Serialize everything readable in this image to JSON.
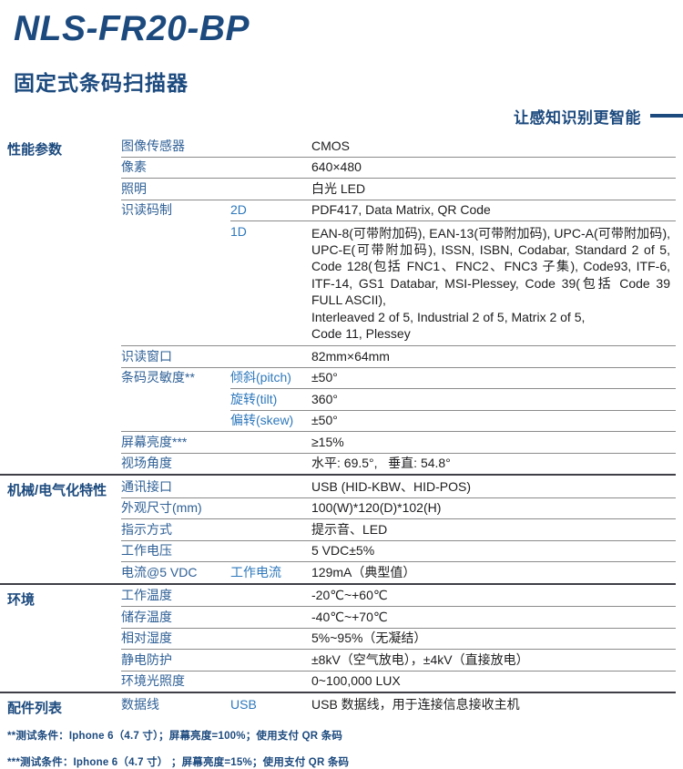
{
  "page": {
    "title": "NLS-FR20-BP",
    "subtitle": "固定式条码扫描器",
    "tagline": "让感知识别更智能"
  },
  "colors": {
    "navy": "#1c4a7e",
    "prop_blue": "#2f6096",
    "sub_blue": "#2e78bc",
    "ink": "#1d1d1f"
  },
  "table": {
    "sections": [
      {
        "label": "性能参数",
        "bordered": false,
        "rows": [
          {
            "prop": "图像传感器",
            "sub": "",
            "value": "CMOS",
            "divider": "none"
          },
          {
            "prop": "像素",
            "sub": "",
            "value": "640×480",
            "divider": "col2"
          },
          {
            "prop": "照明",
            "sub": "",
            "value": "白光 LED",
            "divider": "col2"
          },
          {
            "prop": "识读码制",
            "sub": "2D",
            "value": "PDF417, Data Matrix, QR Code",
            "divider": "col2"
          },
          {
            "prop": "",
            "sub": "1D",
            "value": "EAN-8(可带附加码), EAN-13(可带附加码), UPC-A(可带附加码), UPC-E(可带附加码), ISSN, ISBN, Codabar, Standard 2 of 5, Code 128(包括 FNC1、FNC2、FNC3 子集), Code93, ITF-6, ITF-14, GS1 Databar, MSI-Plessey, Code 39(包括 Code 39 FULL ASCII),\nInterleaved 2 of 5, Industrial 2 of 5, Matrix 2 of 5,\nCode 11, Plessey",
            "divider": "col3",
            "tall": true
          },
          {
            "prop": "识读窗口",
            "sub": "",
            "value": "82mm×64mm",
            "divider": "col2"
          },
          {
            "prop": "条码灵敏度**",
            "sub": "倾斜(pitch)",
            "value": "±50°",
            "divider": "col2"
          },
          {
            "prop": "",
            "sub": "旋转(tilt)",
            "value": "360°",
            "divider": "col3"
          },
          {
            "prop": "",
            "sub": "偏转(skew)",
            "value": "±50°",
            "divider": "col3"
          },
          {
            "prop": "屏幕亮度***",
            "sub": "",
            "value": "≥15%",
            "divider": "col2"
          },
          {
            "prop": "视场角度",
            "sub": "",
            "value": "水平: 69.5°,   垂直: 54.8°",
            "divider": "col2"
          }
        ]
      },
      {
        "label": "机械/电气化特性",
        "bordered": true,
        "rows": [
          {
            "prop": "通讯接口",
            "sub": "",
            "value": "USB (HID-KBW、HID-POS)",
            "divider": "none"
          },
          {
            "prop": "外观尺寸(mm)",
            "sub": "",
            "value": "100(W)*120(D)*102(H)",
            "divider": "col2"
          },
          {
            "prop": "指示方式",
            "sub": "",
            "value": "提示音、LED",
            "divider": "col2"
          },
          {
            "prop": "工作电压",
            "sub": "",
            "value": "5 VDC±5%",
            "divider": "col2"
          },
          {
            "prop": "电流@5 VDC",
            "sub": "工作电流",
            "value": "129mA（典型值）",
            "divider": "col2"
          }
        ]
      },
      {
        "label": "环境",
        "bordered": true,
        "rows": [
          {
            "prop": "工作温度",
            "sub": "",
            "value": "-20℃~+60℃",
            "divider": "none"
          },
          {
            "prop": "储存温度",
            "sub": "",
            "value": "-40℃~+70℃",
            "divider": "col2"
          },
          {
            "prop": "相对湿度",
            "sub": "",
            "value": "5%~95%（无凝结）",
            "divider": "col2"
          },
          {
            "prop": "静电防护",
            "sub": "",
            "value": "±8kV（空气放电），±4kV（直接放电）",
            "divider": "col2"
          },
          {
            "prop": "环境光照度",
            "sub": "",
            "value": "0~100,000 LUX",
            "divider": "col2"
          }
        ]
      },
      {
        "label": "配件列表",
        "bordered": true,
        "rows": [
          {
            "prop": "数据线",
            "sub": "USB",
            "value": "USB 数据线，用于连接信息接收主机",
            "divider": "none"
          }
        ]
      }
    ]
  },
  "footnotes": [
    "**测试条件：Iphone 6（4.7 寸）；屏幕亮度=100%；使用支付 QR 条码",
    "***测试条件：Iphone 6（4.7 寸） ；屏幕亮度=15%；使用支付 QR 条码"
  ]
}
